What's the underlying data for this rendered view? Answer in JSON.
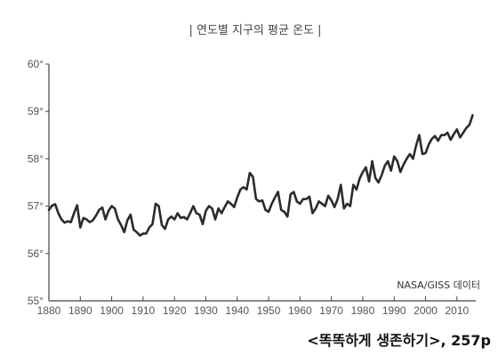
{
  "chart_data": {
    "type": "line",
    "title": "| 연도별 지구의 평균 온도 |",
    "source": "NASA/GISS 데이터",
    "caption": "<똑똑하게 생존하기>, 257p",
    "xlabel": "",
    "ylabel": "",
    "xlim": [
      1880,
      2016
    ],
    "ylim": [
      55,
      60
    ],
    "x_ticks": [
      1880,
      1890,
      1900,
      1910,
      1920,
      1930,
      1940,
      1950,
      1960,
      1970,
      1980,
      1990,
      2000,
      2010
    ],
    "x_tick_labels": [
      "1880",
      "1890",
      "1900",
      "1910",
      "1920",
      "1930",
      "1940",
      "1950",
      "1960",
      "1970",
      "1980",
      "1990",
      "2000",
      "2010"
    ],
    "y_ticks": [
      55,
      56,
      57,
      58,
      59,
      60
    ],
    "y_tick_labels": [
      "55°",
      "56°",
      "57°",
      "58°",
      "59°",
      "60°"
    ],
    "grid": false,
    "line_color": "#2b2b2b",
    "series": [
      {
        "x": [
          1880,
          1881,
          1882,
          1883,
          1884,
          1885,
          1886,
          1887,
          1888,
          1889,
          1890,
          1891,
          1892,
          1893,
          1894,
          1895,
          1896,
          1897,
          1898,
          1899,
          1900,
          1901,
          1902,
          1903,
          1904,
          1905,
          1906,
          1907,
          1908,
          1909,
          1910,
          1911,
          1912,
          1913,
          1914,
          1915,
          1916,
          1917,
          1918,
          1919,
          1920,
          1921,
          1922,
          1923,
          1924,
          1925,
          1926,
          1927,
          1928,
          1929,
          1930,
          1931,
          1932,
          1933,
          1934,
          1935,
          1936,
          1937,
          1938,
          1939,
          1940,
          1941,
          1942,
          1943,
          1944,
          1945,
          1946,
          1947,
          1948,
          1949,
          1950,
          1951,
          1952,
          1953,
          1954,
          1955,
          1956,
          1957,
          1958,
          1959,
          1960,
          1961,
          1962,
          1963,
          1964,
          1965,
          1966,
          1967,
          1968,
          1969,
          1970,
          1971,
          1972,
          1973,
          1974,
          1975,
          1976,
          1977,
          1978,
          1979,
          1980,
          1981,
          1982,
          1983,
          1984,
          1985,
          1986,
          1987,
          1988,
          1989,
          1990,
          1991,
          1992,
          1993,
          1994,
          1995,
          1996,
          1997,
          1998,
          1999,
          2000,
          2001,
          2002,
          2003,
          2004,
          2005,
          2006,
          2007,
          2008,
          2009,
          2010,
          2011,
          2012,
          2013,
          2014,
          2015
        ],
        "values": [
          56.92,
          57.01,
          57.04,
          56.85,
          56.72,
          56.65,
          56.68,
          56.66,
          56.85,
          57.02,
          56.55,
          56.75,
          56.72,
          56.66,
          56.7,
          56.8,
          56.92,
          56.97,
          56.72,
          56.9,
          57.0,
          56.95,
          56.72,
          56.6,
          56.45,
          56.7,
          56.82,
          56.5,
          56.45,
          56.38,
          56.42,
          56.42,
          56.55,
          56.62,
          57.05,
          57.0,
          56.6,
          56.52,
          56.72,
          56.78,
          56.72,
          56.85,
          56.75,
          56.77,
          56.72,
          56.85,
          57.0,
          56.85,
          56.82,
          56.62,
          56.9,
          57.0,
          56.95,
          56.72,
          56.95,
          56.85,
          56.98,
          57.1,
          57.05,
          56.98,
          57.18,
          57.35,
          57.4,
          57.35,
          57.7,
          57.62,
          57.15,
          57.1,
          57.12,
          56.92,
          56.88,
          57.05,
          57.18,
          57.3,
          56.92,
          56.88,
          56.78,
          57.25,
          57.3,
          57.1,
          57.05,
          57.15,
          57.15,
          57.2,
          56.85,
          56.95,
          57.1,
          57.05,
          57.0,
          57.22,
          57.12,
          56.98,
          57.15,
          57.45,
          56.95,
          57.05,
          57.0,
          57.45,
          57.35,
          57.58,
          57.72,
          57.82,
          57.52,
          57.95,
          57.6,
          57.5,
          57.65,
          57.85,
          57.95,
          57.75,
          58.05,
          57.95,
          57.72,
          57.88,
          58.0,
          58.1,
          58.0,
          58.28,
          58.5,
          58.1,
          58.12,
          58.3,
          58.42,
          58.48,
          58.38,
          58.5,
          58.5,
          58.55,
          58.4,
          58.52,
          58.62,
          58.45,
          58.55,
          58.65,
          58.72,
          58.92
        ]
      }
    ]
  }
}
